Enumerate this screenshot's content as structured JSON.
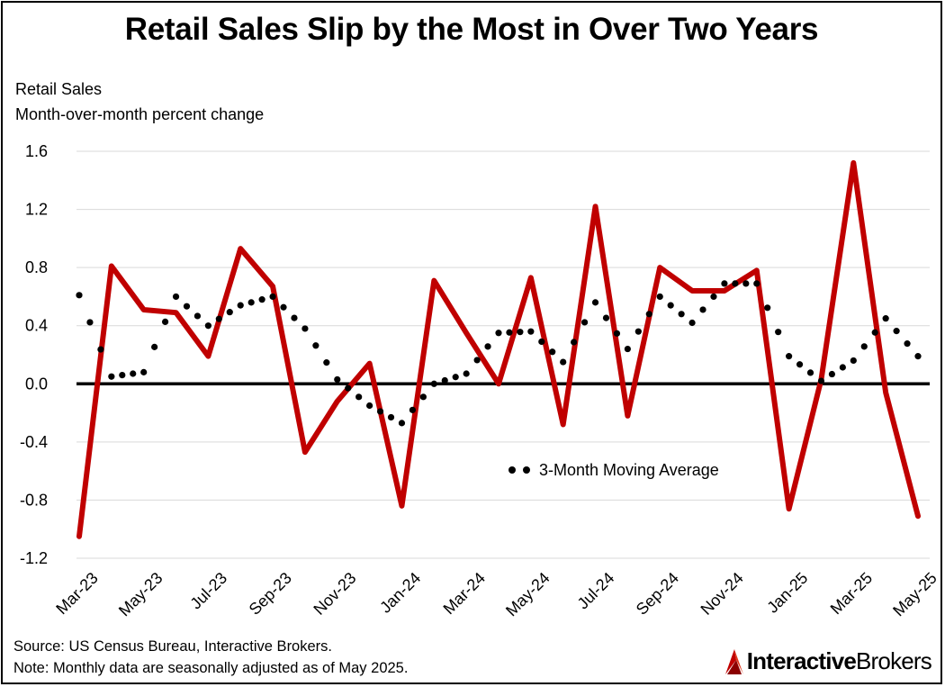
{
  "chart_data": {
    "type": "line",
    "title": "Retail Sales Slip by the Most in Over Two Years",
    "subtitle_line1": "Retail Sales",
    "subtitle_line2": "Month-over-month percent change",
    "x_tick_labels": [
      "Mar-23",
      "May-23",
      "Jul-23",
      "Sep-23",
      "Nov-23",
      "Jan-24",
      "Mar-24",
      "May-24",
      "Jul-24",
      "Sep-24",
      "Nov-24",
      "Jan-25",
      "Mar-25",
      "May-25"
    ],
    "x": [
      "Mar-23",
      "Apr-23",
      "May-23",
      "Jun-23",
      "Jul-23",
      "Aug-23",
      "Sep-23",
      "Oct-23",
      "Nov-23",
      "Dec-23",
      "Jan-24",
      "Feb-24",
      "Mar-24",
      "Apr-24",
      "May-24",
      "Jun-24",
      "Jul-24",
      "Aug-24",
      "Sep-24",
      "Oct-24",
      "Nov-24",
      "Dec-24",
      "Jan-25",
      "Feb-25",
      "Mar-25",
      "Apr-25",
      "May-25"
    ],
    "ylim": [
      -1.2,
      1.6
    ],
    "y_ticks": [
      -1.2,
      -0.8,
      -0.4,
      0.0,
      0.4,
      0.8,
      1.2,
      1.6
    ],
    "y_tick_labels": [
      "-1.2",
      "-0.8",
      "-0.4",
      "0.0",
      "0.4",
      "0.8",
      "1.2",
      "1.6"
    ],
    "series": [
      {
        "name": "Retail Sales MoM % change",
        "style": "solid",
        "color": "#c00000",
        "values": [
          -1.05,
          0.81,
          0.51,
          0.49,
          0.19,
          0.93,
          0.67,
          -0.47,
          -0.12,
          0.14,
          -0.84,
          0.71,
          0.35,
          0.0,
          0.73,
          -0.28,
          1.22,
          -0.22,
          0.8,
          0.64,
          0.64,
          0.78,
          -0.86,
          0.03,
          1.52,
          -0.06,
          -0.91
        ]
      },
      {
        "name": "3-Month Moving Average",
        "style": "dotted",
        "color": "#000000",
        "values": [
          0.61,
          0.05,
          0.08,
          0.6,
          0.4,
          0.54,
          0.6,
          0.38,
          0.03,
          -0.15,
          -0.27,
          0.0,
          0.07,
          0.35,
          0.36,
          0.15,
          0.56,
          0.24,
          0.6,
          0.42,
          0.69,
          0.69,
          0.19,
          0.02,
          0.16,
          0.45,
          0.19
        ]
      }
    ],
    "legend": {
      "label": "3-Month Moving Average",
      "placement": "lower-center"
    },
    "grid": true
  },
  "footer": {
    "source": "Source: US Census Bureau, Interactive Brokers.",
    "note": "Note: Monthly data are seasonally adjusted as of May 2025.",
    "logo_part1": "Interactive",
    "logo_part2": "Brokers"
  },
  "colors": {
    "accent": "#c00000",
    "grid": "#d9d9d9",
    "zero_line": "#000000"
  }
}
